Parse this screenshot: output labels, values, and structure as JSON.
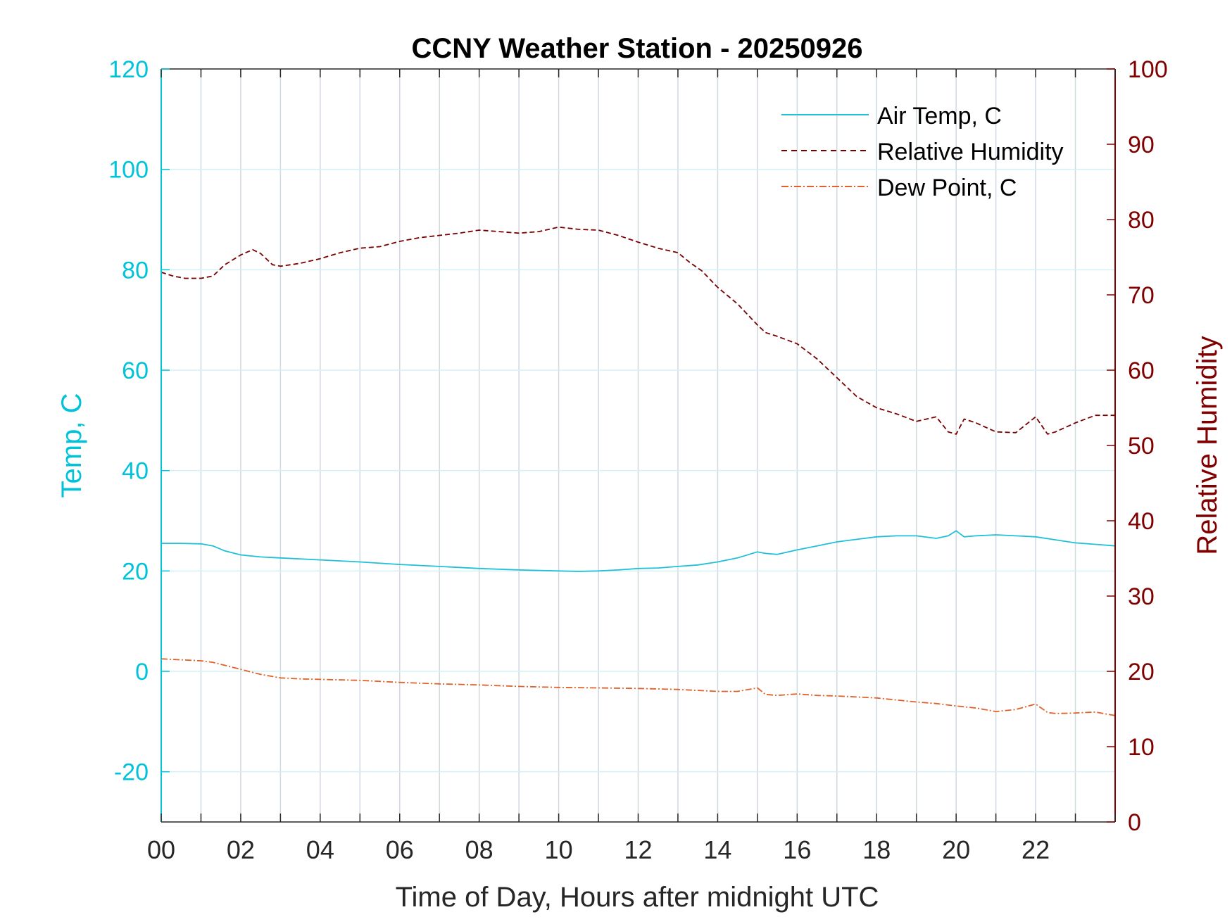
{
  "chart_data": {
    "type": "line",
    "title": "CCNY Weather Station - 20250926",
    "xlabel": "Time of Day, Hours after midnight UTC",
    "ylabel_left": "Temp, C",
    "ylabel_right": "Relative Humidity",
    "xlim": [
      0,
      24
    ],
    "ylim_left": [
      -30,
      120
    ],
    "ylim_right": [
      0,
      100
    ],
    "x_ticks": [
      0,
      2,
      4,
      6,
      8,
      10,
      12,
      14,
      16,
      18,
      20,
      22
    ],
    "x_tick_labels": [
      "00",
      "02",
      "04",
      "06",
      "08",
      "10",
      "12",
      "14",
      "16",
      "18",
      "20",
      "22"
    ],
    "y_left_ticks": [
      -20,
      0,
      20,
      40,
      60,
      80,
      100,
      120
    ],
    "y_left_tick_labels": [
      "-20",
      "0",
      "20",
      "40",
      "60",
      "80",
      "100",
      "120"
    ],
    "y_right_ticks": [
      0,
      10,
      20,
      30,
      40,
      50,
      60,
      70,
      80,
      90,
      100
    ],
    "y_right_tick_labels": [
      "0",
      "10",
      "20",
      "30",
      "40",
      "50",
      "60",
      "70",
      "80",
      "90",
      "100"
    ],
    "grid": true,
    "legend_position": "top-right",
    "colors": {
      "left_axis": "#00c3d9",
      "right_axis": "#800000",
      "air_temp": "#1fc0d8",
      "humidity": "#7a0000",
      "dew_point": "#e0622a",
      "grid_vertical": "#d0d8e0",
      "grid_horizontal": "#d2f0f6"
    },
    "series": [
      {
        "name": "Air Temp, C",
        "axis": "left",
        "style": "solid",
        "x": [
          0,
          0.5,
          1.0,
          1.3,
          1.6,
          2.0,
          2.5,
          3.0,
          4.0,
          5.0,
          6.0,
          7.0,
          8.0,
          9.0,
          10.0,
          10.5,
          11.0,
          11.5,
          12.0,
          12.5,
          13.0,
          13.5,
          14.0,
          14.5,
          15.0,
          15.2,
          15.5,
          16.0,
          16.5,
          17.0,
          17.5,
          18.0,
          18.5,
          19.0,
          19.5,
          19.8,
          20.0,
          20.2,
          20.5,
          21.0,
          21.5,
          22.0,
          22.5,
          23.0,
          23.5,
          24.0
        ],
        "values": [
          25.5,
          25.5,
          25.4,
          25.0,
          24.0,
          23.2,
          22.8,
          22.6,
          22.2,
          21.8,
          21.3,
          20.9,
          20.5,
          20.2,
          20.0,
          19.9,
          20.0,
          20.2,
          20.5,
          20.6,
          20.9,
          21.2,
          21.8,
          22.6,
          23.8,
          23.5,
          23.3,
          24.2,
          25.0,
          25.8,
          26.3,
          26.8,
          27.0,
          27.0,
          26.5,
          27.0,
          28.0,
          26.8,
          27.0,
          27.2,
          27.0,
          26.8,
          26.2,
          25.6,
          25.3,
          25.0
        ]
      },
      {
        "name": "Relative Humidity",
        "axis": "right",
        "style": "dashed",
        "x": [
          0,
          0.3,
          0.6,
          1.0,
          1.3,
          1.6,
          2.0,
          2.3,
          2.5,
          2.8,
          3.0,
          3.5,
          4.0,
          4.5,
          5.0,
          5.5,
          6.0,
          6.5,
          7.0,
          7.5,
          8.0,
          8.5,
          9.0,
          9.5,
          10.0,
          10.5,
          11.0,
          11.5,
          12.0,
          12.5,
          13.0,
          13.3,
          13.6,
          14.0,
          14.5,
          15.0,
          15.2,
          15.5,
          16.0,
          16.5,
          17.0,
          17.5,
          18.0,
          18.5,
          19.0,
          19.5,
          19.8,
          20.0,
          20.2,
          20.5,
          21.0,
          21.5,
          22.0,
          22.3,
          22.5,
          23.0,
          23.5,
          24.0
        ],
        "values": [
          73,
          72.5,
          72.2,
          72.2,
          72.5,
          74.0,
          75.3,
          76.0,
          75.5,
          74.0,
          73.8,
          74.2,
          74.8,
          75.6,
          76.2,
          76.4,
          77.1,
          77.6,
          77.9,
          78.2,
          78.6,
          78.4,
          78.2,
          78.4,
          79.0,
          78.7,
          78.6,
          77.9,
          77.0,
          76.2,
          75.6,
          74.3,
          73.2,
          71.0,
          68.8,
          66.0,
          65.0,
          64.5,
          63.5,
          61.5,
          59.0,
          56.5,
          55.0,
          54.2,
          53.2,
          53.8,
          51.8,
          51.5,
          53.5,
          53.0,
          51.8,
          51.7,
          53.8,
          51.5,
          51.8,
          53.0,
          54.0,
          54.0
        ]
      },
      {
        "name": "Dew Point, C",
        "axis": "left",
        "style": "dashdot",
        "x": [
          0,
          0.5,
          1.0,
          1.3,
          1.6,
          2.0,
          2.5,
          3.0,
          3.5,
          4.0,
          5.0,
          6.0,
          7.0,
          8.0,
          9.0,
          10.0,
          11.0,
          12.0,
          13.0,
          14.0,
          14.5,
          15.0,
          15.2,
          15.5,
          16.0,
          16.5,
          17.0,
          17.5,
          18.0,
          18.5,
          19.0,
          19.5,
          20.0,
          20.5,
          21.0,
          21.5,
          22.0,
          22.3,
          22.5,
          23.0,
          23.5,
          24.0
        ],
        "values": [
          2.5,
          2.3,
          2.1,
          1.8,
          1.2,
          0.4,
          -0.6,
          -1.3,
          -1.5,
          -1.6,
          -1.8,
          -2.2,
          -2.5,
          -2.7,
          -3.0,
          -3.2,
          -3.3,
          -3.4,
          -3.6,
          -4.0,
          -4.0,
          -3.3,
          -4.6,
          -4.8,
          -4.5,
          -4.8,
          -4.9,
          -5.1,
          -5.3,
          -5.7,
          -6.1,
          -6.4,
          -6.9,
          -7.3,
          -8.0,
          -7.6,
          -6.5,
          -8.2,
          -8.4,
          -8.3,
          -8.1,
          -8.8
        ]
      }
    ]
  }
}
